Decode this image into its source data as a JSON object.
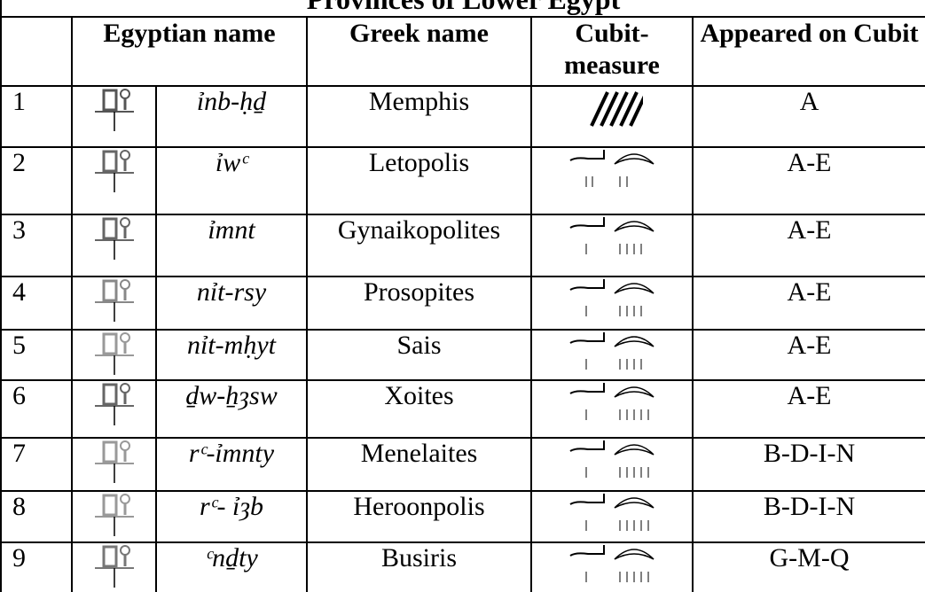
{
  "table": {
    "title": "Provinces of Lower Egypt",
    "header": [
      "Egyptian name",
      "Greek name",
      "Cubit-measure",
      "Appeared on Cubit"
    ],
    "rows": [
      [
        "1",
        "ỉnb-ḥḏ",
        "Memphis",
        "A"
      ],
      [
        "2",
        "ỉwᶜ",
        "Letopolis",
        "A-E"
      ],
      [
        "3",
        "ỉmnt",
        "Gynaikopolites",
        "A-E"
      ],
      [
        "4",
        "nỉt-rsy",
        "Prosopites",
        "A-E"
      ],
      [
        "5",
        "nỉt-mḥyt",
        "Sais",
        "A-E"
      ],
      [
        "6",
        "ḏw-ẖȝsw",
        "Xoites",
        "A-E"
      ],
      [
        "7",
        "rᶜ-ỉmnty",
        "Menelaites",
        "B-D-I-N"
      ],
      [
        "8",
        "rᶜ- ỉȝb",
        "Heroonpolis",
        "B-D-I-N"
      ],
      [
        "9",
        "ᶜnḏty",
        "Busiris",
        "G-M-Q"
      ]
    ]
  }
}
